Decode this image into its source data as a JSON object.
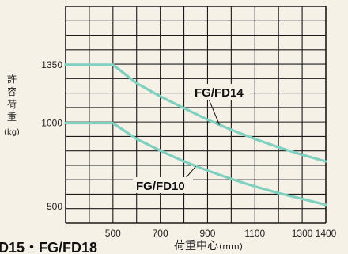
{
  "chart_data": {
    "type": "line",
    "title": "",
    "xlabel": "荷重中心",
    "xlabel_unit": "(mm)",
    "ylabel_chars": [
      "許",
      "容",
      "荷",
      "重"
    ],
    "ylabel_unit": "(kg)",
    "xlim": [
      300,
      1400
    ],
    "ylim": [
      400,
      1700
    ],
    "grid": true,
    "x_ticks": [
      {
        "value": 500,
        "label": "500"
      },
      {
        "value": 700,
        "label": "700"
      },
      {
        "value": 900,
        "label": "900"
      },
      {
        "value": 1100,
        "label": "1100"
      },
      {
        "value": 1300,
        "label": "1300"
      },
      {
        "value": 1400,
        "label": "1400"
      }
    ],
    "y_ticks": [
      {
        "value": 1350,
        "label": "1350"
      },
      {
        "value": 1000,
        "label": "1000"
      },
      {
        "value": 500,
        "label": "500"
      }
    ],
    "series": [
      {
        "name": "FG/FD14",
        "x": [
          300,
          500,
          600,
          700,
          800,
          900,
          1000,
          1100,
          1200,
          1300,
          1400
        ],
        "y": [
          1350,
          1350,
          1240,
          1160,
          1090,
          1020,
          960,
          905,
          855,
          810,
          770
        ]
      },
      {
        "name": "FG/FD10",
        "x": [
          300,
          500,
          600,
          700,
          800,
          900,
          1000,
          1100,
          1200,
          1300,
          1400
        ],
        "y": [
          1000,
          1000,
          905,
          835,
          770,
          715,
          665,
          620,
          580,
          545,
          510
        ]
      }
    ],
    "footer_text": "D15・FG/FD18"
  },
  "colors": {
    "background": "#f6f1e7",
    "grid": "#1a1a1a",
    "series_line": "#7fd0c0"
  }
}
